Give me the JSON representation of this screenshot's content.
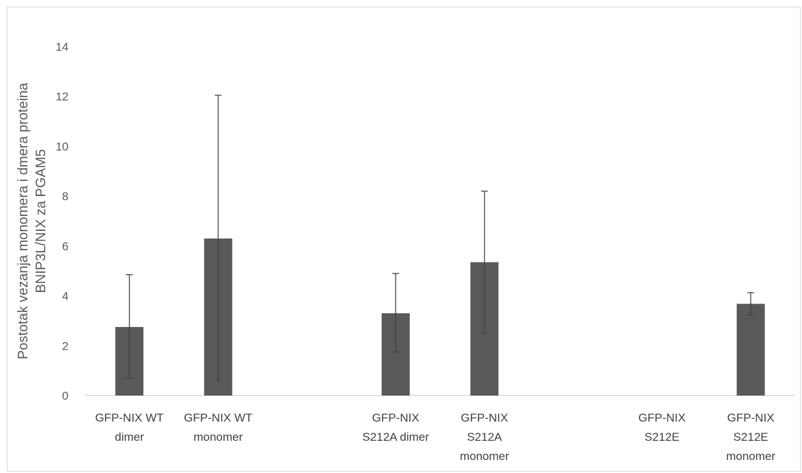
{
  "chart_data": {
    "type": "bar",
    "title": "",
    "xlabel": "",
    "ylabel_lines": [
      "Postotak vezanja monomera i dmera proteina",
      "BNIP3L/NIX za PGAM5"
    ],
    "ylim": [
      0,
      14
    ],
    "yticks": [
      0,
      2,
      4,
      6,
      8,
      10,
      12,
      14
    ],
    "grid": false,
    "categories": [
      [
        "GFP-NIX WT",
        "dimer"
      ],
      [
        "GFP-NIX WT",
        "monomer"
      ],
      [],
      [
        "GFP-NIX",
        "S212A dimer"
      ],
      [
        "GFP-NIX",
        "S212A",
        "monomer"
      ],
      [],
      [
        "GFP-NIX",
        "S212E"
      ],
      [
        "GFP-NIX",
        "S212E",
        "monomer"
      ]
    ],
    "values": [
      2.75,
      6.3,
      null,
      3.3,
      5.35,
      null,
      null,
      3.68
    ],
    "error_minus": [
      2.05,
      5.7,
      null,
      1.55,
      2.85,
      null,
      null,
      0.45
    ],
    "error_plus": [
      2.1,
      5.75,
      null,
      1.6,
      2.85,
      null,
      null,
      0.45
    ],
    "bar_color": "#595959",
    "error_color": "#404040"
  }
}
